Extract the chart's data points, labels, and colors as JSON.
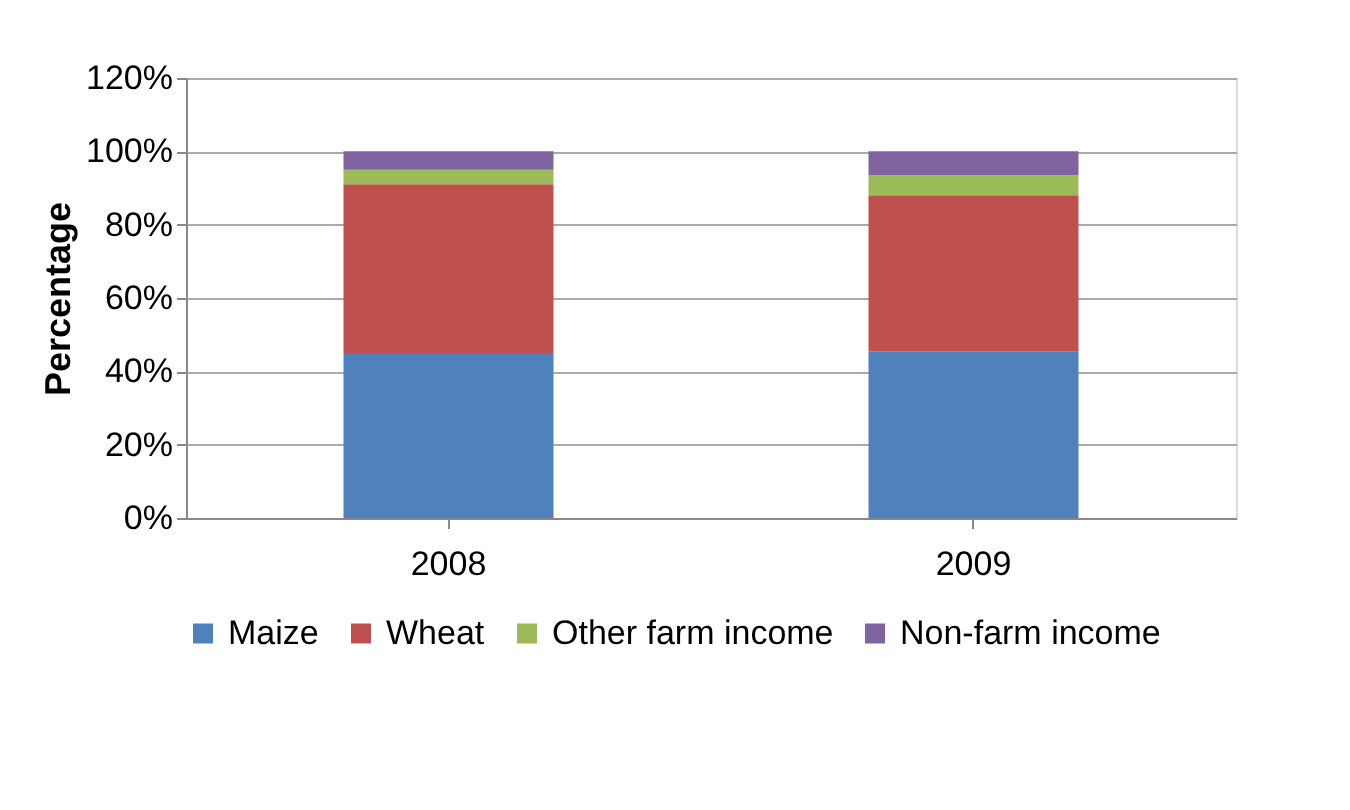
{
  "chart_data": {
    "type": "bar",
    "stacked": true,
    "ylabel": "Percentage",
    "categories": [
      "2008",
      "2009"
    ],
    "series": [
      {
        "name": "Maize",
        "color": "#4f81bd",
        "values": [
          45,
          45.5
        ]
      },
      {
        "name": "Wheat",
        "color": "#c0504d",
        "values": [
          46,
          42.5
        ]
      },
      {
        "name": "Other farm income",
        "color": "#9bbb59",
        "values": [
          4,
          5.5
        ]
      },
      {
        "name": "Non-farm income",
        "color": "#8064a2",
        "values": [
          5,
          6.5
        ]
      }
    ],
    "ylim": [
      0,
      120
    ],
    "yticks": [
      {
        "value": 0,
        "label": "0%"
      },
      {
        "value": 20,
        "label": "20%"
      },
      {
        "value": 40,
        "label": "40%"
      },
      {
        "value": 60,
        "label": "60%"
      },
      {
        "value": 80,
        "label": "80%"
      },
      {
        "value": 100,
        "label": "100%"
      },
      {
        "value": 120,
        "label": "120%"
      }
    ],
    "grid": "y",
    "legend": "bottom"
  }
}
